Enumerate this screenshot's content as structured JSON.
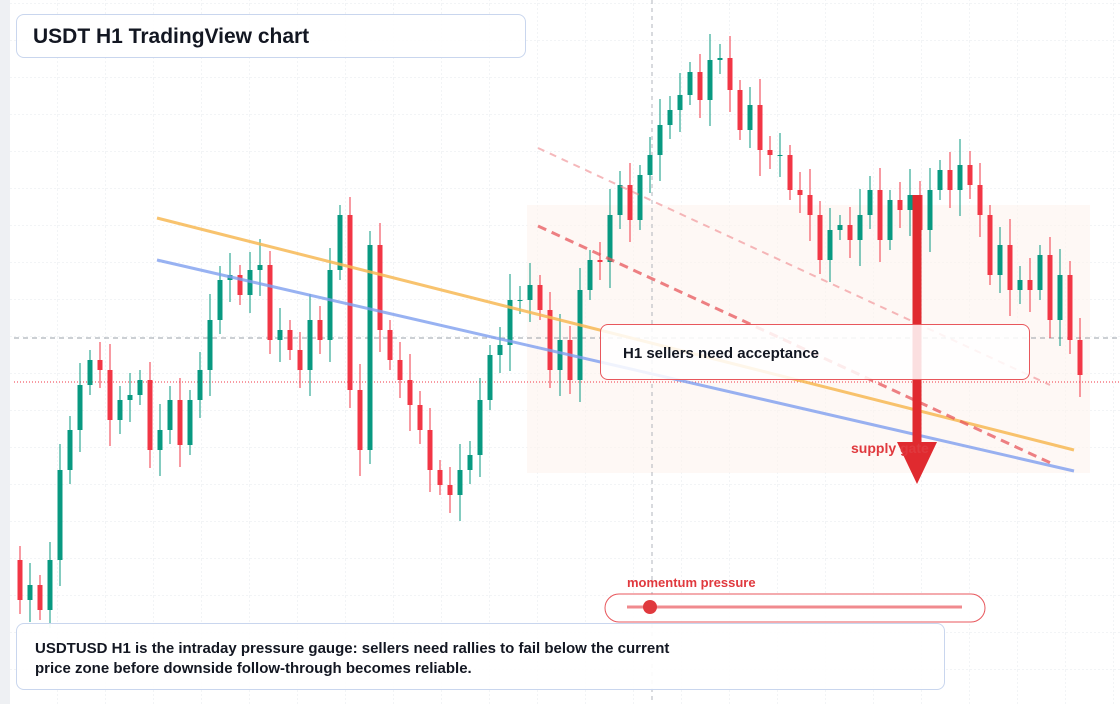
{
  "chart_data": {
    "type": "candlestick",
    "title": "USDT H1 TradingView chart",
    "annotation": "H1 sellers need acceptance",
    "zone_label": "supply gate",
    "gauge_label": "momentum pressure",
    "description": "USDTUSD H1 is the intraday pressure gauge: sellers need rallies to fail below the current price zone before downside follow-through becomes reliable.",
    "up_color": "#089981",
    "down_color": "#f23645",
    "ylim": [
      0,
      704
    ],
    "open": [
      144,
      104,
      119,
      94,
      144,
      234,
      274,
      319,
      344,
      334,
      284,
      304,
      309,
      324,
      254,
      274,
      304,
      259,
      304,
      334,
      384,
      424,
      429,
      409,
      434,
      439,
      364,
      374,
      354,
      334,
      384,
      364,
      434,
      489,
      314,
      254,
      459,
      374,
      344,
      324,
      299,
      274,
      234,
      219,
      209,
      234,
      249,
      304,
      349,
      359,
      404,
      404,
      419,
      394,
      334,
      364,
      324,
      414,
      444,
      442,
      489,
      519,
      484,
      529,
      549,
      579,
      594,
      609,
      632,
      604,
      644,
      646,
      614,
      574,
      599,
      554,
      549,
      549,
      514,
      509,
      489,
      444,
      474,
      479,
      464,
      489,
      514,
      464,
      504,
      494,
      509,
      474,
      514,
      534,
      514,
      539,
      519,
      489,
      429,
      459,
      414,
      424,
      414,
      449,
      384,
      429,
      364
    ],
    "high": [
      158,
      141,
      129,
      162,
      260,
      288,
      341,
      354,
      362,
      360,
      318,
      331,
      334,
      342,
      300,
      318,
      326,
      314,
      352,
      410,
      438,
      451,
      439,
      452,
      465,
      453,
      396,
      384,
      372,
      410,
      398,
      456,
      499,
      507,
      340,
      473,
      481,
      384,
      362,
      350,
      313,
      296,
      244,
      237,
      260,
      263,
      326,
      359,
      377,
      430,
      418,
      441,
      429,
      412,
      390,
      378,
      436,
      454,
      462,
      515,
      533,
      541,
      539,
      567,
      605,
      608,
      631,
      642,
      650,
      670,
      660,
      668,
      624,
      617,
      625,
      568,
      571,
      559,
      532,
      535,
      503,
      496,
      489,
      497,
      515,
      528,
      536,
      514,
      522,
      535,
      523,
      536,
      544,
      552,
      565,
      553,
      541,
      499,
      477,
      485,
      438,
      446,
      459,
      467,
      455,
      443,
      386
    ],
    "low": [
      90,
      82,
      84,
      76,
      118,
      220,
      252,
      309,
      316,
      258,
      270,
      282,
      299,
      236,
      228,
      260,
      237,
      249,
      286,
      308,
      370,
      402,
      399,
      391,
      408,
      350,
      342,
      344,
      316,
      308,
      350,
      342,
      424,
      296,
      228,
      240,
      352,
      334,
      306,
      273,
      260,
      212,
      209,
      191,
      183,
      220,
      227,
      294,
      331,
      333,
      390,
      382,
      384,
      316,
      308,
      310,
      302,
      404,
      424,
      416,
      475,
      462,
      474,
      511,
      523,
      565,
      572,
      599,
      586,
      578,
      630,
      592,
      564,
      556,
      528,
      535,
      527,
      504,
      491,
      463,
      430,
      422,
      464,
      446,
      438,
      475,
      442,
      454,
      476,
      468,
      460,
      452,
      504,
      496,
      488,
      505,
      467,
      419,
      411,
      388,
      400,
      392,
      404,
      366,
      358,
      350,
      307
    ],
    "close": [
      104,
      119,
      94,
      144,
      234,
      274,
      319,
      344,
      334,
      284,
      304,
      309,
      324,
      254,
      274,
      304,
      259,
      304,
      334,
      384,
      424,
      429,
      409,
      434,
      439,
      364,
      374,
      354,
      334,
      384,
      364,
      434,
      489,
      314,
      254,
      459,
      374,
      344,
      324,
      299,
      274,
      234,
      219,
      209,
      234,
      249,
      304,
      349,
      359,
      404,
      404,
      419,
      394,
      334,
      364,
      324,
      414,
      444,
      442,
      489,
      519,
      484,
      529,
      549,
      579,
      594,
      609,
      632,
      604,
      644,
      646,
      614,
      574,
      599,
      554,
      549,
      549,
      514,
      509,
      489,
      444,
      474,
      479,
      464,
      489,
      514,
      464,
      504,
      494,
      509,
      474,
      514,
      534,
      514,
      539,
      519,
      489,
      429,
      459,
      414,
      424,
      414,
      449,
      384,
      429,
      364,
      329
    ]
  }
}
